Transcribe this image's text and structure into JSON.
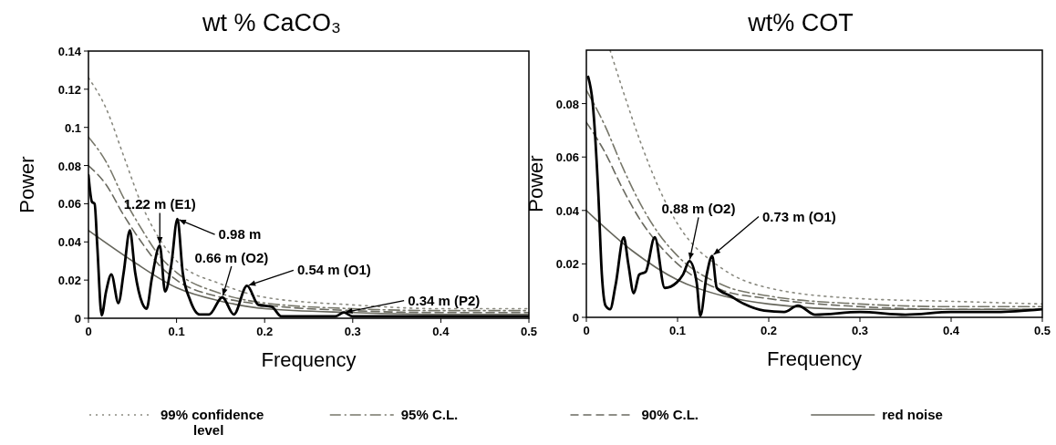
{
  "chart_data": [
    {
      "type": "line",
      "title": "wt % CaCO₃",
      "xlabel": "Frequency",
      "ylabel": "Power",
      "xlim": [
        0,
        0.5
      ],
      "xticks": [
        0,
        0.1,
        0.2,
        0.3,
        0.4,
        0.5
      ],
      "ylim": [
        0,
        0.14
      ],
      "yticks": [
        0,
        0.02,
        0.04,
        0.06,
        0.08,
        0.1,
        0.12,
        0.14
      ],
      "grid": false,
      "legend": "bottom",
      "series": [
        {
          "name": "99% confidence level",
          "color": "#8a8a80",
          "line_style": "dotted",
          "x": [
            0,
            0.02,
            0.04,
            0.06,
            0.08,
            0.1,
            0.15,
            0.2,
            0.3,
            0.4,
            0.5
          ],
          "values": [
            0.126,
            0.11,
            0.085,
            0.06,
            0.042,
            0.03,
            0.018,
            0.011,
            0.007,
            0.005,
            0.005
          ]
        },
        {
          "name": "95% C.L.",
          "color": "#77776a",
          "line_style": "dashdot",
          "x": [
            0,
            0.02,
            0.04,
            0.06,
            0.08,
            0.1,
            0.15,
            0.2,
            0.3,
            0.4,
            0.5
          ],
          "values": [
            0.095,
            0.082,
            0.063,
            0.047,
            0.033,
            0.024,
            0.013,
            0.008,
            0.005,
            0.004,
            0.004
          ]
        },
        {
          "name": "90% C.L.",
          "color": "#6a6a60",
          "line_style": "dashed",
          "x": [
            0,
            0.02,
            0.04,
            0.06,
            0.08,
            0.1,
            0.15,
            0.2,
            0.3,
            0.4,
            0.5
          ],
          "values": [
            0.08,
            0.07,
            0.054,
            0.04,
            0.028,
            0.02,
            0.011,
            0.007,
            0.004,
            0.003,
            0.003
          ]
        },
        {
          "name": "red noise",
          "color": "#66665c",
          "line_style": "solid",
          "x": [
            0,
            0.05,
            0.1,
            0.15,
            0.2,
            0.3,
            0.4,
            0.5
          ],
          "values": [
            0.046,
            0.03,
            0.016,
            0.009,
            0.005,
            0.003,
            0.002,
            0.002
          ]
        },
        {
          "color": "#000000",
          "line_style": "solid",
          "x": [
            0,
            0.004,
            0.007,
            0.01,
            0.015,
            0.02,
            0.026,
            0.034,
            0.04,
            0.047,
            0.053,
            0.061,
            0.066,
            0.072,
            0.081,
            0.087,
            0.094,
            0.101,
            0.107,
            0.115,
            0.126,
            0.137,
            0.152,
            0.165,
            0.18,
            0.193,
            0.208,
            0.219,
            0.25,
            0.28,
            0.29,
            0.3,
            0.35,
            0.4,
            0.45,
            0.5
          ],
          "values": [
            0.075,
            0.061,
            0.06,
            0.038,
            0.0015,
            0.014,
            0.023,
            0.008,
            0.024,
            0.046,
            0.024,
            0.008,
            0.005,
            0.021,
            0.038,
            0.014,
            0.028,
            0.052,
            0.024,
            0.01,
            0.002,
            0.002,
            0.011,
            0.002,
            0.017,
            0.007,
            0.006,
            0.001,
            0.001,
            0.001,
            0.003,
            0.001,
            0.001,
            0.001,
            0.001,
            0.001
          ]
        }
      ],
      "annotations": [
        {
          "text": "1.22 m (E1)",
          "x": 0.081,
          "y": 0.038
        },
        {
          "text": "0.98 m",
          "x": 0.101,
          "y": 0.052
        },
        {
          "text": "0.66 m (O2)",
          "x": 0.152,
          "y": 0.011
        },
        {
          "text": "0.54 m (O1)",
          "x": 0.18,
          "y": 0.017
        },
        {
          "text": "0.34 m (P2)",
          "x": 0.29,
          "y": 0.003
        }
      ]
    },
    {
      "type": "line",
      "title": "wt% COT",
      "xlabel": "Frequency",
      "ylabel": "Power",
      "xlim": [
        0,
        0.5
      ],
      "xticks": [
        0,
        0.1,
        0.2,
        0.3,
        0.4,
        0.5
      ],
      "ylim": [
        0,
        0.1
      ],
      "yticks": [
        0,
        0.02,
        0.04,
        0.06,
        0.08
      ],
      "grid": false,
      "legend": false,
      "series": [
        {
          "color": "#8a8a80",
          "line_style": "dotted",
          "x": [
            0.026,
            0.04,
            0.06,
            0.08,
            0.1,
            0.15,
            0.2,
            0.3,
            0.4,
            0.5
          ],
          "values": [
            0.1,
            0.085,
            0.065,
            0.048,
            0.035,
            0.018,
            0.011,
            0.007,
            0.006,
            0.005
          ]
        },
        {
          "color": "#77776a",
          "line_style": "dashdot",
          "x": [
            0,
            0.02,
            0.04,
            0.06,
            0.08,
            0.1,
            0.15,
            0.2,
            0.3,
            0.4,
            0.5
          ],
          "values": [
            0.085,
            0.072,
            0.056,
            0.042,
            0.031,
            0.023,
            0.012,
            0.008,
            0.005,
            0.004,
            0.004
          ]
        },
        {
          "color": "#6a6a60",
          "line_style": "dashed",
          "x": [
            0,
            0.02,
            0.04,
            0.06,
            0.08,
            0.1,
            0.15,
            0.2,
            0.3,
            0.4,
            0.5
          ],
          "values": [
            0.073,
            0.062,
            0.048,
            0.036,
            0.027,
            0.02,
            0.01,
            0.007,
            0.004,
            0.003,
            0.003
          ]
        },
        {
          "color": "#66665c",
          "line_style": "solid",
          "x": [
            0,
            0.05,
            0.1,
            0.15,
            0.2,
            0.3,
            0.4,
            0.5
          ],
          "values": [
            0.04,
            0.025,
            0.014,
            0.008,
            0.005,
            0.003,
            0.003,
            0.003
          ]
        },
        {
          "color": "#000000",
          "line_style": "solid",
          "x": [
            0.002,
            0.007,
            0.013,
            0.017,
            0.021,
            0.026,
            0.032,
            0.041,
            0.046,
            0.052,
            0.058,
            0.065,
            0.075,
            0.086,
            0.099,
            0.106,
            0.113,
            0.121,
            0.125,
            0.132,
            0.138,
            0.143,
            0.158,
            0.173,
            0.195,
            0.217,
            0.232,
            0.251,
            0.3,
            0.35,
            0.4,
            0.45,
            0.5
          ],
          "values": [
            0.09,
            0.08,
            0.047,
            0.016,
            0.0044,
            0.003,
            0.012,
            0.03,
            0.02,
            0.009,
            0.016,
            0.017,
            0.03,
            0.011,
            0.013,
            0.016,
            0.021,
            0.013,
            0.0006,
            0.016,
            0.023,
            0.011,
            0.008,
            0.005,
            0.0025,
            0.002,
            0.0044,
            0.001,
            0.002,
            0.001,
            0.002,
            0.002,
            0.003
          ]
        }
      ],
      "annotations": [
        {
          "text": "0.88 m (O2)",
          "x": 0.113,
          "y": 0.021
        },
        {
          "text": "0.73 m (O1)",
          "x": 0.138,
          "y": 0.023
        }
      ]
    }
  ]
}
